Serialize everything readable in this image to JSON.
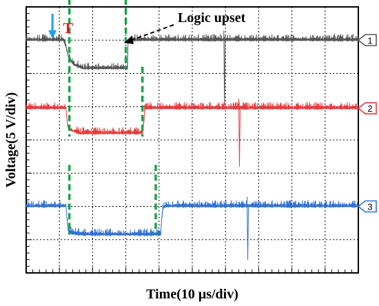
{
  "chart_data": {
    "type": "line",
    "xlabel": "Time(10 μs/div)",
    "ylabel": "Voltage(5 V/div)",
    "x_unit": "div",
    "xlim": [
      0,
      10
    ],
    "ylim": [
      0,
      8
    ],
    "grid": true,
    "trigger_label": "T",
    "trigger_x": 0.75,
    "annotation": "Logic upset",
    "series": [
      {
        "name": "1",
        "color": "#555555",
        "x": [
          0,
          1.12,
          1.2,
          1.28,
          1.45,
          1.7,
          2.5,
          3.05,
          3.06,
          3.07,
          3.5,
          5.0,
          6.0,
          6.1,
          8.0,
          10.0
        ],
        "y": [
          7.0,
          7.0,
          6.8,
          6.45,
          6.25,
          6.15,
          6.15,
          6.15,
          6.65,
          7.0,
          7.0,
          7.0,
          7.0,
          7.0,
          7.0,
          7.0
        ],
        "glitch_x": 5.95
      },
      {
        "name": "2",
        "color": "#e8393a",
        "x": [
          0,
          1.2,
          1.22,
          1.25,
          1.35,
          1.6,
          2.5,
          3.5,
          3.55,
          3.57,
          3.6,
          5.0,
          7.0,
          10.0
        ],
        "y": [
          4.95,
          4.95,
          4.7,
          4.4,
          4.28,
          4.2,
          4.2,
          4.2,
          4.6,
          4.95,
          4.95,
          4.95,
          4.95,
          4.95
        ],
        "glitch_x": 6.4
      },
      {
        "name": "3",
        "color": "#2f6fd6",
        "x": [
          0,
          1.2,
          1.23,
          1.27,
          1.4,
          1.7,
          3.0,
          4.05,
          4.08,
          4.12,
          4.2,
          6.0,
          8.0,
          10.0
        ],
        "y": [
          2.0,
          2.0,
          1.6,
          1.25,
          1.18,
          1.15,
          1.15,
          1.15,
          1.6,
          1.95,
          2.0,
          2.0,
          2.0,
          2.0
        ],
        "glitch_x": 6.65
      }
    ],
    "markers": [
      {
        "series": 0,
        "x": [
          1.3,
          3.0
        ]
      },
      {
        "series": 1,
        "x": [
          1.3,
          3.5
        ]
      },
      {
        "series": 2,
        "x": [
          1.3,
          3.9
        ]
      }
    ]
  },
  "colors": {
    "marker": "#1aa34a",
    "trigger_text": "#e02020",
    "trigger_arrow": "#1ea0e6",
    "frame": "#000000"
  }
}
